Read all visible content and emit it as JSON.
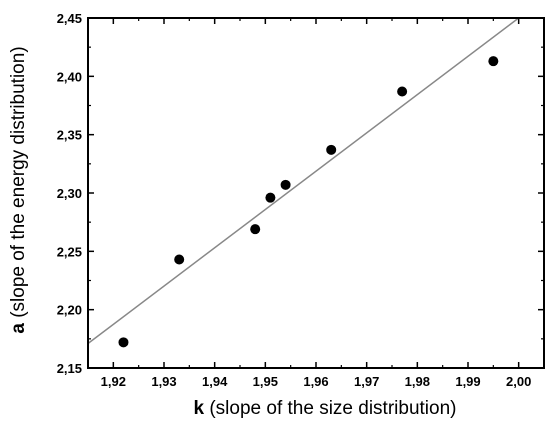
{
  "chart_data": {
    "type": "scatter",
    "title": "",
    "xlabel_symbol": "k",
    "xlabel_text": " (slope of the size distribution)",
    "ylabel_symbol": "a",
    "ylabel_text": " (slope of the energy distribution)",
    "xlim": [
      1.915,
      2.005
    ],
    "ylim": [
      2.15,
      2.45
    ],
    "x_ticks": [
      1.92,
      1.93,
      1.94,
      1.95,
      1.96,
      1.97,
      1.98,
      1.99,
      2.0
    ],
    "x_tick_labels": [
      "1,92",
      "1,93",
      "1,94",
      "1,95",
      "1,96",
      "1,97",
      "1,98",
      "1,99",
      "2,00"
    ],
    "y_ticks": [
      2.15,
      2.2,
      2.25,
      2.3,
      2.35,
      2.4,
      2.45
    ],
    "y_tick_labels": [
      "2,15",
      "2,20",
      "2,25",
      "2,30",
      "2,35",
      "2,40",
      "2,45"
    ],
    "grid": false,
    "series": [
      {
        "points": [
          {
            "x": 1.922,
            "y": 2.172
          },
          {
            "x": 1.933,
            "y": 2.243
          },
          {
            "x": 1.948,
            "y": 2.269
          },
          {
            "x": 1.951,
            "y": 2.296
          },
          {
            "x": 1.954,
            "y": 2.307
          },
          {
            "x": 1.963,
            "y": 2.337
          },
          {
            "x": 1.977,
            "y": 2.387
          },
          {
            "x": 1.995,
            "y": 2.413
          }
        ]
      }
    ],
    "fit_line": {
      "x": [
        1.915,
        2.0
      ],
      "y": [
        2.171,
        2.45
      ]
    },
    "colors": {
      "points": "#000000",
      "fit_line": "#888888",
      "axes": "#000000"
    }
  }
}
